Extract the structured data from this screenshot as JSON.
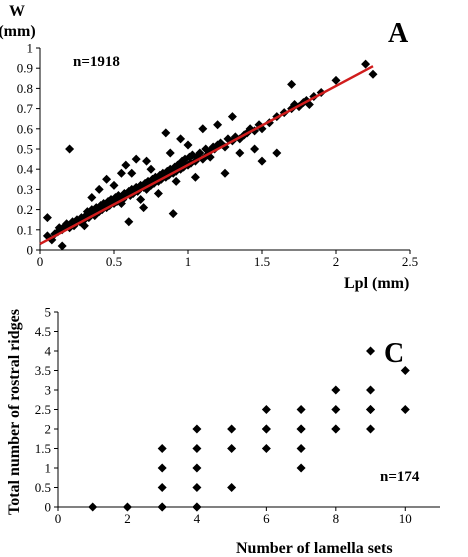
{
  "chart_data": [
    {
      "type": "scatter",
      "panel_letter": "A",
      "annotation": "n=1918",
      "ylabel_line1": "W",
      "ylabel_line2": "(mm)",
      "xlabel": "Lpl (mm)",
      "xlim": [
        0,
        2.5
      ],
      "ylim": [
        0,
        1
      ],
      "xticks": [
        "0",
        "0.5",
        "1",
        "1.5",
        "2",
        "2.5"
      ],
      "yticks": [
        "0",
        "0.1",
        "0.2",
        "0.3",
        "0.4",
        "0.5",
        "0.6",
        "0.7",
        "0.8",
        "0.9",
        "1"
      ],
      "marker_color": "#000000",
      "trendline": {
        "color": "#d01c1c",
        "x": [
          0,
          2.25
        ],
        "y": [
          0.03,
          0.91
        ]
      },
      "x": [
        0.05,
        0.08,
        0.1,
        0.12,
        0.13,
        0.15,
        0.17,
        0.18,
        0.2,
        0.22,
        0.23,
        0.25,
        0.27,
        0.28,
        0.3,
        0.31,
        0.32,
        0.33,
        0.35,
        0.36,
        0.37,
        0.38,
        0.4,
        0.41,
        0.42,
        0.43,
        0.45,
        0.46,
        0.47,
        0.48,
        0.5,
        0.51,
        0.52,
        0.53,
        0.55,
        0.56,
        0.57,
        0.58,
        0.6,
        0.61,
        0.62,
        0.63,
        0.65,
        0.66,
        0.67,
        0.68,
        0.7,
        0.71,
        0.72,
        0.73,
        0.75,
        0.76,
        0.77,
        0.78,
        0.8,
        0.81,
        0.82,
        0.83,
        0.85,
        0.86,
        0.87,
        0.88,
        0.9,
        0.91,
        0.92,
        0.93,
        0.95,
        0.96,
        0.97,
        0.98,
        1.0,
        1.01,
        1.02,
        1.03,
        1.05,
        1.06,
        1.08,
        1.1,
        1.12,
        1.13,
        1.15,
        1.17,
        1.18,
        1.2,
        1.22,
        1.25,
        1.27,
        1.3,
        1.32,
        1.35,
        1.38,
        1.4,
        1.42,
        1.45,
        1.48,
        1.5,
        1.55,
        1.6,
        1.65,
        1.7,
        1.72,
        1.75,
        1.78,
        1.8,
        1.82,
        1.85,
        1.9,
        2.0,
        2.2,
        2.25,
        0.2,
        0.55,
        0.9,
        0.6,
        0.65,
        0.85,
        1.3,
        1.5,
        1.7,
        0.05,
        0.15,
        0.3,
        0.55,
        0.58,
        0.7,
        0.95,
        1.1,
        1.6,
        0.4,
        0.45,
        0.75,
        0.8,
        1.05,
        1.2,
        1.25,
        1.35,
        1.45,
        0.35,
        0.5,
        0.62,
        0.68,
        0.72,
        0.88,
        0.92,
        0.98,
        1.0,
        1.15
      ],
      "y": [
        0.07,
        0.05,
        0.08,
        0.09,
        0.11,
        0.1,
        0.12,
        0.13,
        0.11,
        0.14,
        0.12,
        0.15,
        0.14,
        0.16,
        0.15,
        0.17,
        0.19,
        0.16,
        0.2,
        0.18,
        0.17,
        0.21,
        0.19,
        0.22,
        0.2,
        0.23,
        0.21,
        0.24,
        0.22,
        0.25,
        0.23,
        0.26,
        0.24,
        0.27,
        0.26,
        0.25,
        0.28,
        0.27,
        0.29,
        0.27,
        0.3,
        0.28,
        0.31,
        0.29,
        0.3,
        0.32,
        0.31,
        0.33,
        0.3,
        0.34,
        0.32,
        0.35,
        0.33,
        0.36,
        0.34,
        0.37,
        0.35,
        0.38,
        0.36,
        0.39,
        0.37,
        0.4,
        0.38,
        0.41,
        0.39,
        0.42,
        0.4,
        0.44,
        0.41,
        0.45,
        0.42,
        0.46,
        0.43,
        0.47,
        0.44,
        0.46,
        0.48,
        0.45,
        0.5,
        0.47,
        0.49,
        0.51,
        0.5,
        0.52,
        0.53,
        0.51,
        0.55,
        0.54,
        0.56,
        0.55,
        0.57,
        0.58,
        0.6,
        0.59,
        0.62,
        0.6,
        0.63,
        0.66,
        0.68,
        0.7,
        0.72,
        0.71,
        0.73,
        0.74,
        0.72,
        0.76,
        0.78,
        0.84,
        0.92,
        0.87,
        0.5,
        0.23,
        0.18,
        0.14,
        0.45,
        0.58,
        0.66,
        0.44,
        0.82,
        0.16,
        0.02,
        0.12,
        0.38,
        0.42,
        0.21,
        0.55,
        0.6,
        0.48,
        0.3,
        0.35,
        0.4,
        0.28,
        0.36,
        0.62,
        0.38,
        0.48,
        0.5,
        0.26,
        0.32,
        0.38,
        0.25,
        0.44,
        0.48,
        0.34,
        0.42,
        0.52,
        0.46
      ]
    },
    {
      "type": "scatter",
      "panel_letter": "C",
      "annotation": "n=174",
      "ylabel": "Total number of rostral ridges",
      "xlabel": "Number of lamella sets",
      "xlim": [
        0,
        11
      ],
      "ylim": [
        0,
        5
      ],
      "xticks": [
        "0",
        "2",
        "4",
        "6",
        "8",
        "10"
      ],
      "yticks": [
        "0",
        "0.5",
        "1",
        "1.5",
        "2",
        "2.5",
        "3",
        "3.5",
        "4",
        "4.5",
        "5"
      ],
      "marker_color": "#000000",
      "x": [
        1,
        2,
        3,
        3,
        3,
        3,
        3,
        4,
        4,
        4,
        4,
        4,
        4,
        5,
        5,
        5,
        6,
        6,
        6,
        6,
        7,
        7,
        7,
        7,
        7,
        8,
        8,
        8,
        8,
        9,
        9,
        9,
        9,
        9,
        10,
        10
      ],
      "y": [
        0,
        0,
        0,
        0.5,
        1,
        1.5,
        0,
        0,
        0.5,
        1,
        1.5,
        2,
        0,
        0.5,
        1.5,
        2,
        1.5,
        2,
        2.5,
        2,
        1,
        1.5,
        2,
        2.5,
        2,
        2,
        2.5,
        3,
        2,
        2,
        2.5,
        3,
        4,
        2.5,
        2.5,
        3.5
      ]
    }
  ]
}
